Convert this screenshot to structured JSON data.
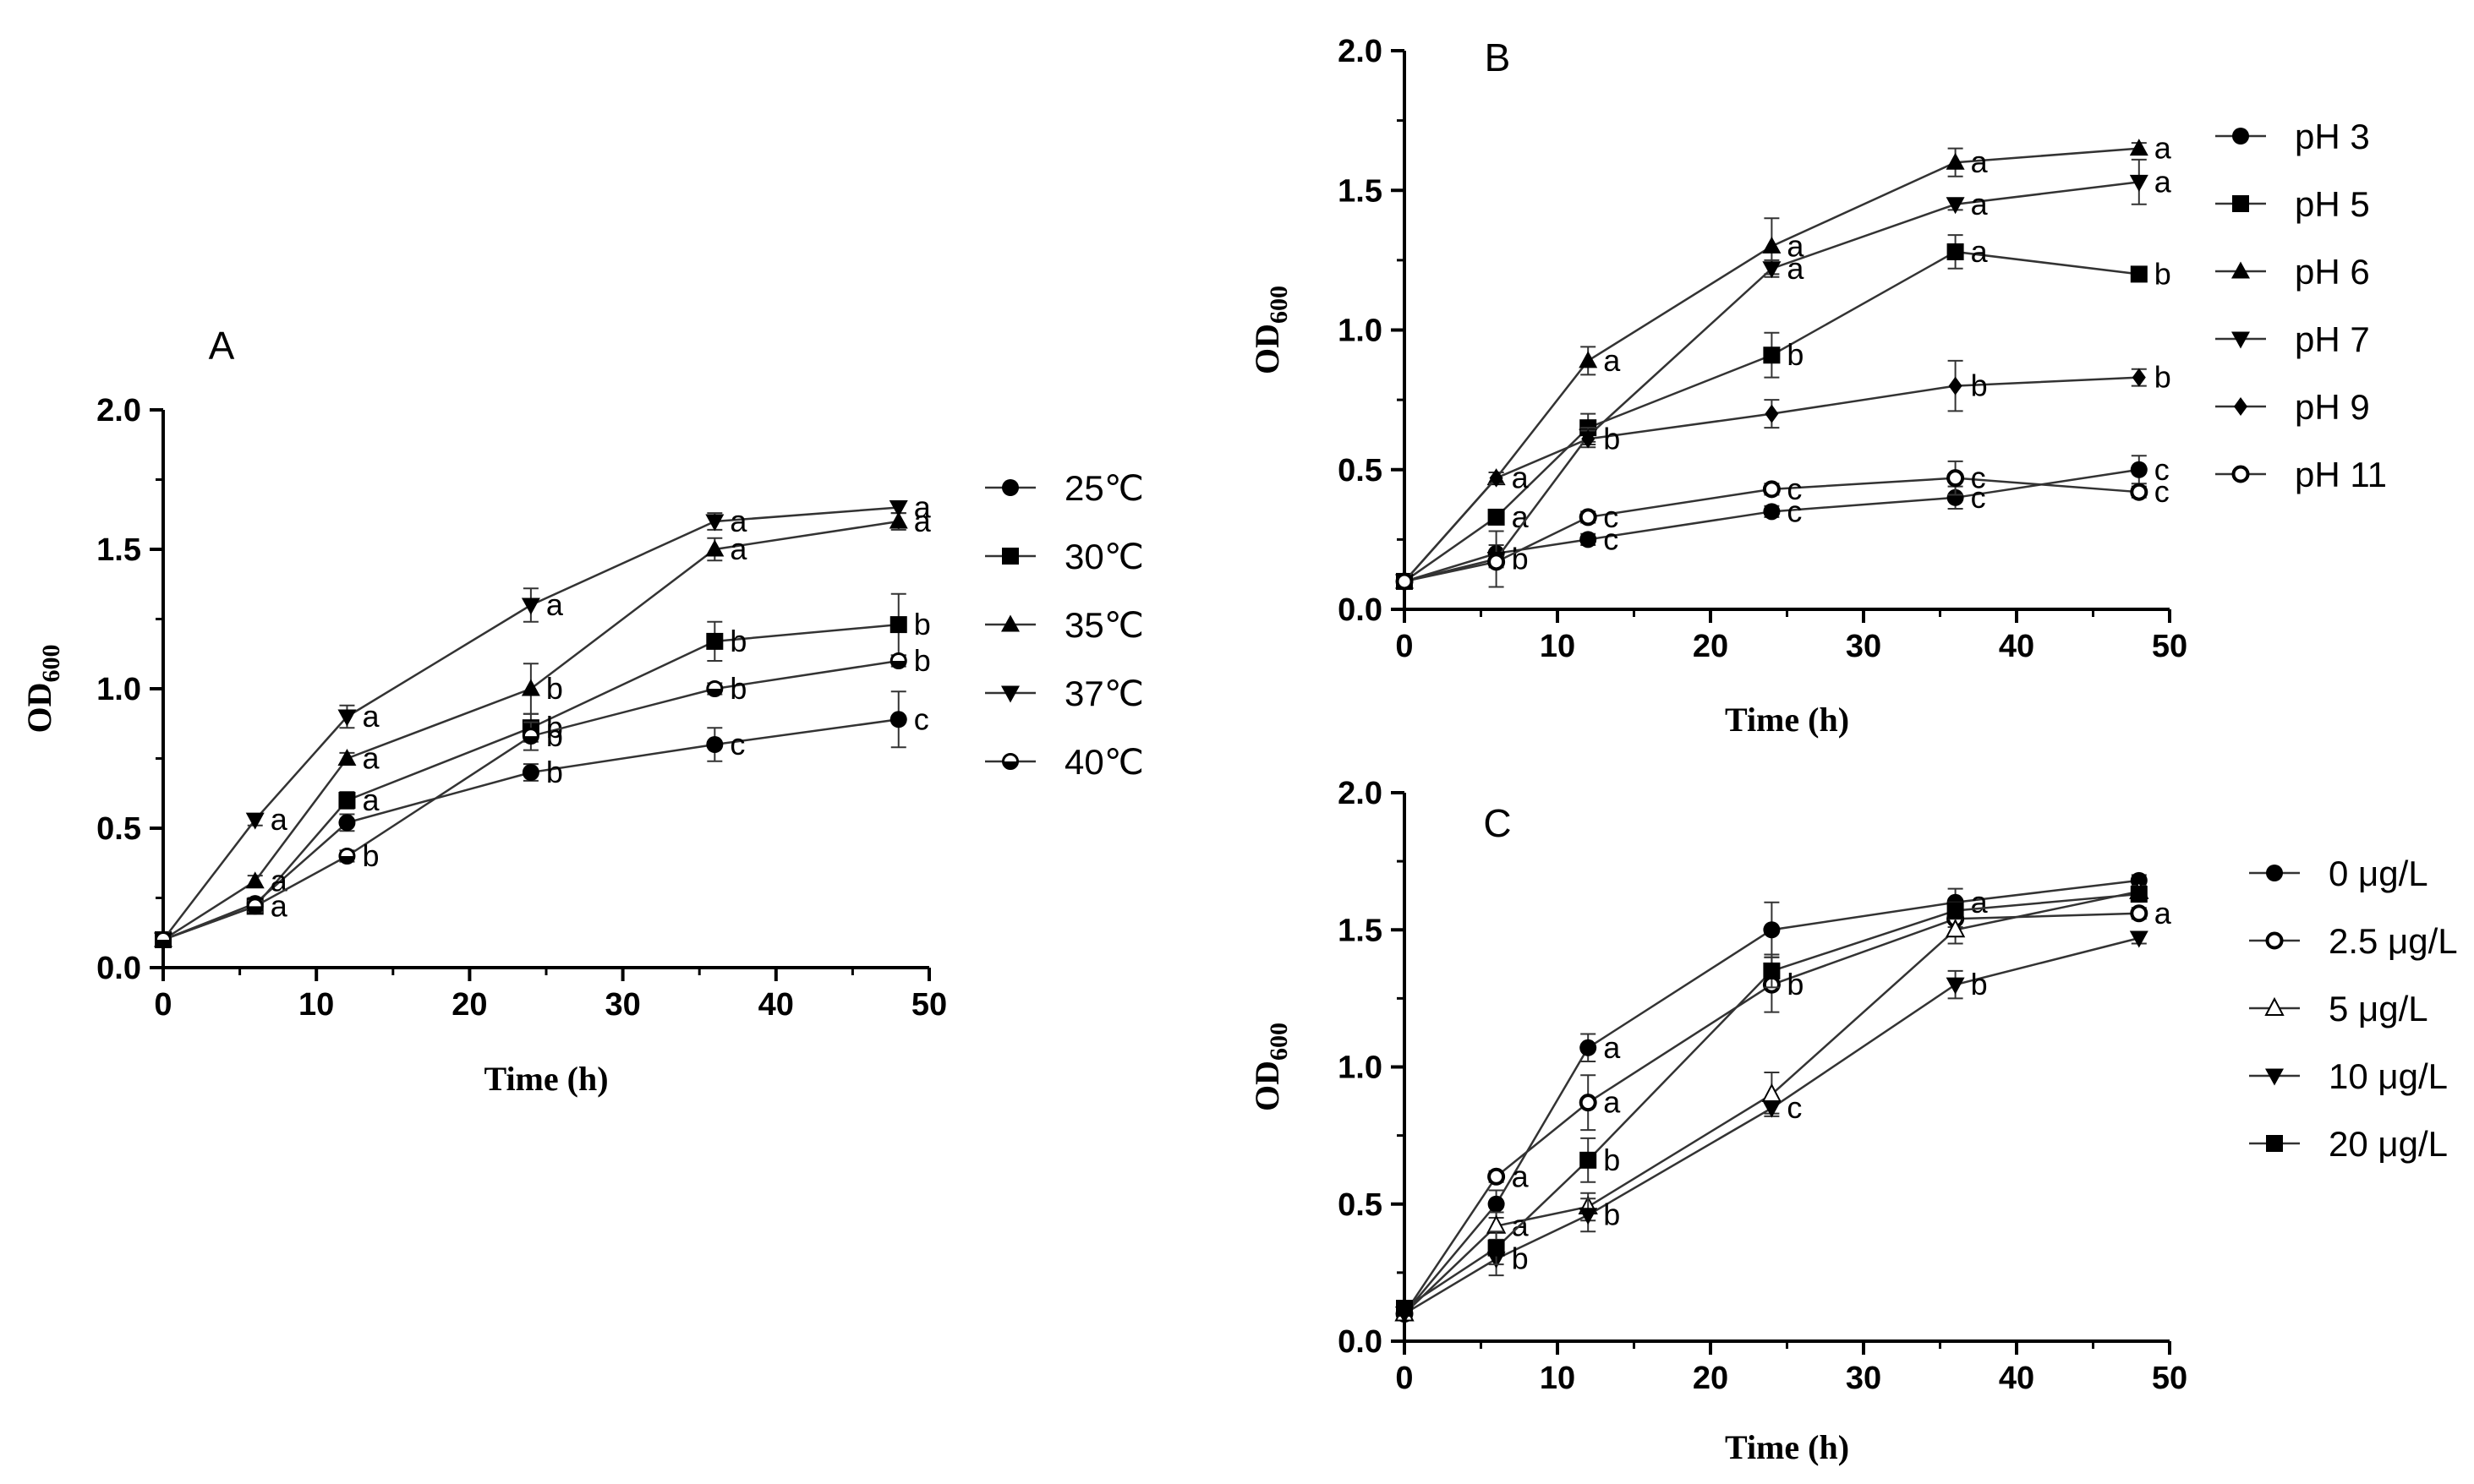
{
  "chart_data": [
    {
      "panel": "A",
      "type": "line",
      "xlabel": "Time (h)",
      "ylabel_main": "OD",
      "ylabel_sub": "600",
      "xlim": [
        0,
        50
      ],
      "ylim": [
        0,
        2.0
      ],
      "xticks": [
        "0",
        "10",
        "20",
        "30",
        "40",
        "50"
      ],
      "yticks": [
        "0.0",
        "0.5",
        "1.0",
        "1.5",
        "2.0"
      ],
      "x": [
        0,
        6,
        12,
        24,
        36,
        48
      ],
      "series": [
        {
          "name": "25℃",
          "marker": "circle",
          "values": [
            0.1,
            0.23,
            0.52,
            0.7,
            0.8,
            0.89
          ],
          "errors": [
            0,
            0.02,
            0.03,
            0.03,
            0.06,
            0.1
          ],
          "labels": [
            "",
            "",
            "",
            "b",
            "c",
            "c"
          ]
        },
        {
          "name": "30℃",
          "marker": "square",
          "values": [
            0.1,
            0.22,
            0.6,
            0.86,
            1.17,
            1.23
          ],
          "errors": [
            0,
            0.02,
            0.03,
            0.05,
            0.07,
            0.11
          ],
          "labels": [
            "",
            "a",
            "a",
            "b",
            "b",
            "b"
          ]
        },
        {
          "name": "35℃",
          "marker": "triangle-up",
          "values": [
            0.1,
            0.31,
            0.75,
            1.0,
            1.5,
            1.6
          ],
          "errors": [
            0,
            0.02,
            0.02,
            0.09,
            0.04,
            0.03
          ],
          "labels": [
            "",
            "a",
            "a",
            "b",
            "a",
            "a"
          ]
        },
        {
          "name": "37℃",
          "marker": "triangle-down",
          "values": [
            0.1,
            0.53,
            0.9,
            1.3,
            1.6,
            1.65
          ],
          "errors": [
            0,
            0.02,
            0.04,
            0.06,
            0.03,
            0.02
          ],
          "labels": [
            "",
            "a",
            "a",
            "a",
            "a",
            "a"
          ]
        },
        {
          "name": "40℃",
          "marker": "half-circle",
          "values": [
            0.1,
            0.22,
            0.4,
            0.83,
            1.0,
            1.1
          ],
          "errors": [
            0,
            0.02,
            0.02,
            0.05,
            0.02,
            0.02
          ],
          "labels": [
            "",
            "",
            "b",
            "b",
            "b",
            "b"
          ]
        }
      ]
    },
    {
      "panel": "B",
      "type": "line",
      "xlabel": "Time (h)",
      "ylabel_main": "OD",
      "ylabel_sub": "600",
      "xlim": [
        0,
        50
      ],
      "ylim": [
        0,
        2.0
      ],
      "xticks": [
        "0",
        "10",
        "20",
        "30",
        "40",
        "50"
      ],
      "yticks": [
        "0.0",
        "0.5",
        "1.0",
        "1.5",
        "2.0"
      ],
      "x": [
        0,
        6,
        12,
        24,
        36,
        48
      ],
      "series": [
        {
          "name": "pH 3",
          "marker": "circle",
          "values": [
            0.1,
            0.2,
            0.25,
            0.35,
            0.4,
            0.5
          ],
          "errors": [
            0,
            0.03,
            0.02,
            0.02,
            0.04,
            0.05
          ],
          "labels": [
            "",
            "",
            "c",
            "c",
            "c",
            "c"
          ]
        },
        {
          "name": "pH 5",
          "marker": "square",
          "values": [
            0.1,
            0.33,
            0.65,
            0.91,
            1.28,
            1.2
          ],
          "errors": [
            0,
            0.02,
            0.05,
            0.08,
            0.06,
            0.02
          ],
          "labels": [
            "",
            "a",
            "",
            "b",
            "a",
            "b"
          ]
        },
        {
          "name": "pH 6",
          "marker": "triangle-up",
          "values": [
            0.1,
            0.47,
            0.89,
            1.3,
            1.6,
            1.65
          ],
          "errors": [
            0,
            0.02,
            0.05,
            0.1,
            0.05,
            0.02
          ],
          "labels": [
            "",
            "",
            "a",
            "a",
            "a",
            "a"
          ]
        },
        {
          "name": "pH 7",
          "marker": "triangle-down",
          "values": [
            0.1,
            0.18,
            0.62,
            1.22,
            1.45,
            1.53
          ],
          "errors": [
            0,
            0.1,
            0.03,
            0.03,
            0.02,
            0.08
          ],
          "labels": [
            "",
            "b",
            "",
            "a",
            "a",
            "a"
          ]
        },
        {
          "name": "pH 9",
          "marker": "diamond",
          "values": [
            0.1,
            0.47,
            0.61,
            0.7,
            0.8,
            0.83
          ],
          "errors": [
            0,
            0.02,
            0.03,
            0.05,
            0.09,
            0.03
          ],
          "labels": [
            "",
            "a",
            "b",
            "",
            "b",
            "b"
          ]
        },
        {
          "name": "pH 11",
          "marker": "open-circle",
          "values": [
            0.1,
            0.17,
            0.33,
            0.43,
            0.47,
            0.42
          ],
          "errors": [
            0,
            0.02,
            0.02,
            0.02,
            0.06,
            0.02
          ],
          "labels": [
            "",
            "",
            "c",
            "c",
            "c",
            "c"
          ]
        }
      ]
    },
    {
      "panel": "C",
      "type": "line",
      "xlabel": "Time (h)",
      "ylabel_main": "OD",
      "ylabel_sub": "600",
      "xlim": [
        0,
        50
      ],
      "ylim": [
        0,
        2.0
      ],
      "xticks": [
        "0",
        "10",
        "20",
        "30",
        "40",
        "50"
      ],
      "yticks": [
        "0.0",
        "0.5",
        "1.0",
        "1.5",
        "2.0"
      ],
      "x": [
        0,
        6,
        12,
        24,
        36,
        48
      ],
      "series": [
        {
          "name": "0 μg/L",
          "marker": "circle",
          "values": [
            0.1,
            0.5,
            1.07,
            1.5,
            1.6,
            1.68
          ],
          "errors": [
            0,
            0.05,
            0.05,
            0.1,
            0.05,
            0.02
          ],
          "labels": [
            "",
            "",
            "a",
            "",
            "a",
            ""
          ]
        },
        {
          "name": "2.5 μg/L",
          "marker": "open-circle",
          "values": [
            0.1,
            0.6,
            0.87,
            1.3,
            1.54,
            1.56
          ],
          "errors": [
            0,
            0.02,
            0.1,
            0.1,
            0.03,
            0.02
          ],
          "labels": [
            "",
            "a",
            "a",
            "b",
            "",
            "a"
          ]
        },
        {
          "name": "5 μg/L",
          "marker": "open-triangle-up",
          "values": [
            0.1,
            0.42,
            0.49,
            0.9,
            1.5,
            1.64
          ],
          "errors": [
            0,
            0.05,
            0.05,
            0.08,
            0.05,
            0.02
          ],
          "labels": [
            "",
            "a",
            "",
            "",
            "",
            ""
          ]
        },
        {
          "name": "10 μg/L",
          "marker": "triangle-down",
          "values": [
            0.1,
            0.3,
            0.46,
            0.85,
            1.3,
            1.47
          ],
          "errors": [
            0,
            0.06,
            0.06,
            0.02,
            0.05,
            0.02
          ],
          "labels": [
            "",
            "b",
            "b",
            "c",
            "b",
            ""
          ]
        },
        {
          "name": "20 μg/L",
          "marker": "square",
          "values": [
            0.12,
            0.34,
            0.66,
            1.35,
            1.57,
            1.63
          ],
          "errors": [
            0,
            0.06,
            0.08,
            0.06,
            0.03,
            0.02
          ],
          "labels": [
            "",
            "",
            "b",
            "",
            "",
            ""
          ]
        }
      ]
    }
  ]
}
